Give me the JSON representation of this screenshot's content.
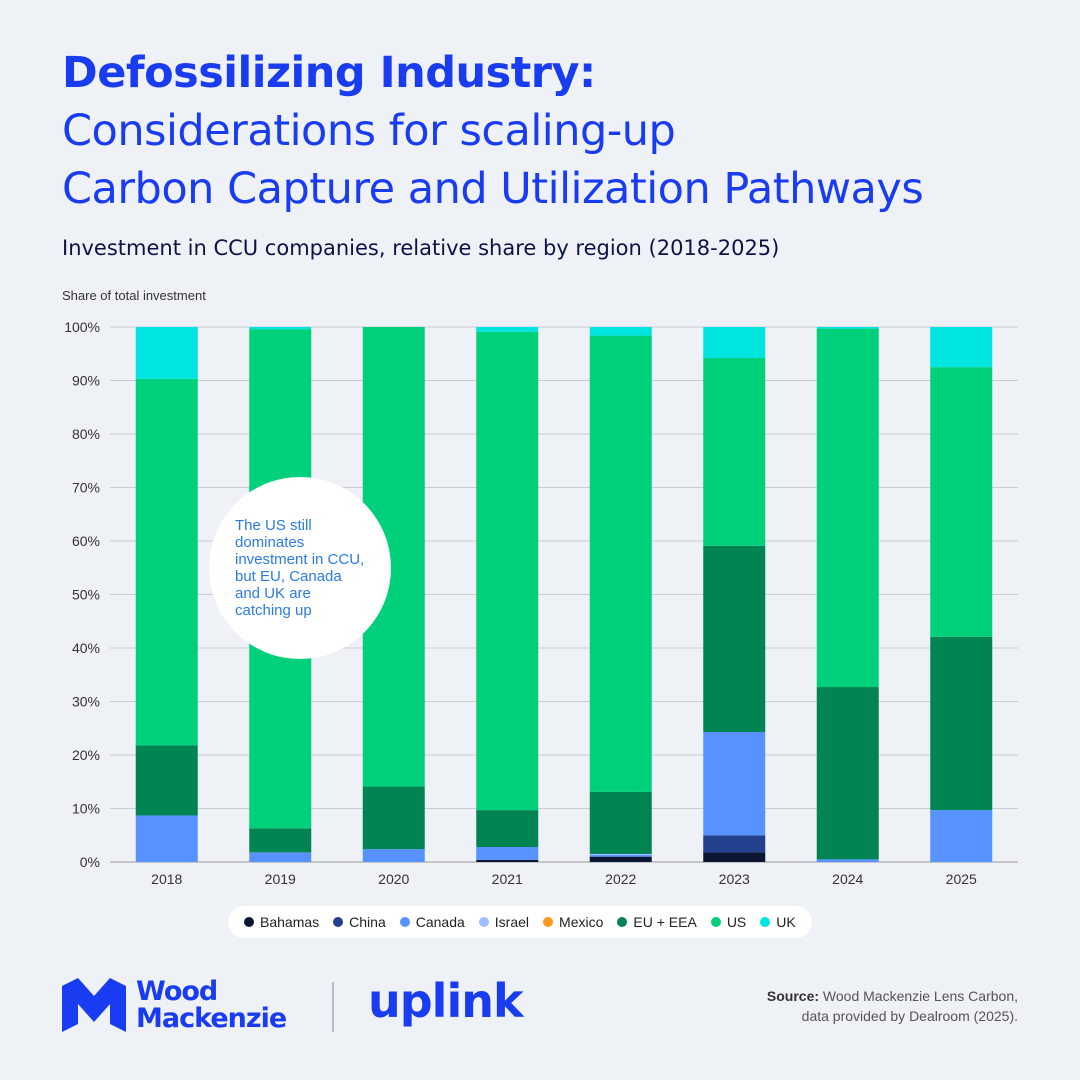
{
  "header": {
    "title_bold": "Defossilizing Industry:",
    "title_line2": "Considerations for scaling-up",
    "title_line3": "Carbon Capture and Utilization Pathways",
    "subtitle": "Investment in CCU companies, relative share by region (2018-2025)"
  },
  "callout": {
    "text": "The US still dominates investment in CCU, but EU, Canada and UK are catching up"
  },
  "footer": {
    "brand_line1": "Wood",
    "brand_line2": "Mackenzie",
    "partner": "uplink",
    "source_label": "Source:",
    "source_line1": " Wood Mackenzie Lens Carbon,",
    "source_line2": "data provided by Dealroom (2025)."
  },
  "colors": {
    "accent": "#1a3cf0",
    "Bahamas": "#0b1633",
    "China": "#24418f",
    "Canada": "#5892ff",
    "Israel": "#9dbfff",
    "Mexico": "#ff9a1f",
    "EU + EEA": "#008552",
    "US": "#00d07a",
    "UK": "#00e5e0"
  },
  "chart_data": {
    "type": "bar",
    "stacked": true,
    "ylabel": "Share of total investment",
    "ylim": [
      0,
      100
    ],
    "yticks": [
      "0%",
      "10%",
      "20%",
      "30%",
      "40%",
      "50%",
      "60%",
      "70%",
      "80%",
      "90%",
      "100%"
    ],
    "grid": true,
    "legend_position": "bottom",
    "categories": [
      "2018",
      "2019",
      "2020",
      "2021",
      "2022",
      "2023",
      "2024",
      "2025"
    ],
    "series": [
      {
        "name": "Bahamas",
        "values": [
          0,
          0,
          0,
          0.4,
          1.0,
          1.8,
          0,
          0
        ]
      },
      {
        "name": "China",
        "values": [
          0,
          0,
          0,
          0,
          0,
          3.2,
          0,
          0
        ]
      },
      {
        "name": "Canada",
        "values": [
          8.7,
          1.8,
          2.4,
          2.4,
          0.3,
          19.3,
          0.5,
          9.7
        ]
      },
      {
        "name": "Israel",
        "values": [
          0,
          0,
          0,
          0,
          0.2,
          0,
          0,
          0
        ]
      },
      {
        "name": "Mexico",
        "values": [
          0,
          0,
          0,
          0,
          0,
          0,
          0,
          0
        ]
      },
      {
        "name": "EU + EEA",
        "values": [
          13.1,
          4.5,
          11.7,
          6.9,
          11.6,
          34.8,
          32.2,
          32.4
        ]
      },
      {
        "name": "US",
        "values": [
          68.5,
          93.3,
          85.9,
          89.4,
          85.3,
          35.1,
          67.0,
          50.4
        ]
      },
      {
        "name": "UK",
        "values": [
          9.7,
          0.4,
          0,
          0.9,
          1.6,
          5.8,
          0.3,
          7.5
        ]
      }
    ]
  }
}
